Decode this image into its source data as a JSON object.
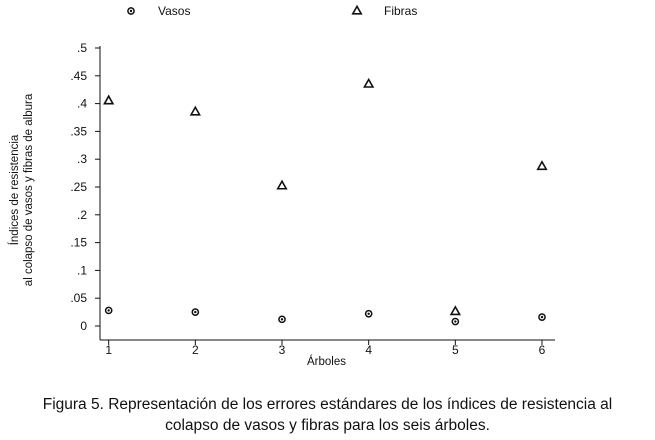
{
  "chart_data": {
    "type": "scatter",
    "xlabel": "Árboles",
    "ylabel_lines": [
      "Índices de resistencia",
      "al colapso de vasos y fibras de albura"
    ],
    "x": [
      1,
      2,
      3,
      4,
      5,
      6
    ],
    "xlim": [
      0.9,
      6.15
    ],
    "ylim": [
      0,
      0.5
    ],
    "x_ticks": [
      "1",
      "2",
      "3",
      "4",
      "5",
      "6"
    ],
    "y_ticks": [
      {
        "value": 0,
        "label": "0"
      },
      {
        "value": 0.05,
        "label": ".05"
      },
      {
        "value": 0.1,
        "label": ".1"
      },
      {
        "value": 0.15,
        "label": ".15"
      },
      {
        "value": 0.2,
        "label": ".2"
      },
      {
        "value": 0.25,
        "label": ".25"
      },
      {
        "value": 0.3,
        "label": ".3"
      },
      {
        "value": 0.35,
        "label": ".35"
      },
      {
        "value": 0.4,
        "label": ".4"
      },
      {
        "value": 0.45,
        "label": ".45"
      },
      {
        "value": 0.5,
        "label": ".5"
      }
    ],
    "series": [
      {
        "name": "Vasos",
        "marker": "circle",
        "values": [
          0.028,
          0.025,
          0.012,
          0.022,
          0.008,
          0.016
        ]
      },
      {
        "name": "Fibras",
        "marker": "triangle",
        "values": [
          0.405,
          0.385,
          0.252,
          0.435,
          0.026,
          0.287
        ]
      }
    ],
    "legend_position": "top",
    "grid": false
  },
  "caption": {
    "line1": "Figura 5. Representación de los errores estándares de los índices de resistencia al",
    "line2": "colapso de vasos y fibras para los seis árboles."
  },
  "colors": {
    "ink": "#111111",
    "background": "#ffffff"
  }
}
